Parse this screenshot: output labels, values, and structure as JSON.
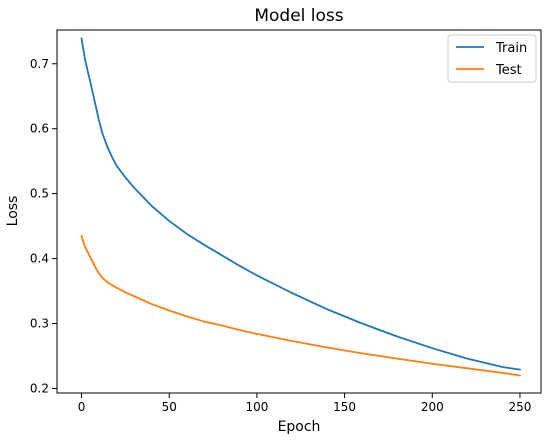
{
  "chart_data": {
    "type": "line",
    "title": "Model loss",
    "xlabel": "Epoch",
    "ylabel": "Loss",
    "xlim": [
      -14,
      262
    ],
    "ylim": [
      0.193,
      0.752
    ],
    "x_ticks": [
      0,
      50,
      100,
      150,
      200,
      250
    ],
    "y_ticks": [
      0.2,
      0.3,
      0.4,
      0.5,
      0.6,
      0.7
    ],
    "x_tick_labels": [
      "0",
      "50",
      "100",
      "150",
      "200",
      "250"
    ],
    "y_tick_labels": [
      "0.2",
      "0.3",
      "0.4",
      "0.5",
      "0.6",
      "0.7"
    ],
    "grid": false,
    "legend_position": "top-right",
    "series": [
      {
        "name": "Train",
        "color": "#1f77b4",
        "x": [
          0,
          2,
          5,
          8,
          10,
          12,
          15,
          18,
          20,
          25,
          30,
          40,
          50,
          60,
          70,
          80,
          90,
          100,
          120,
          140,
          160,
          180,
          200,
          220,
          240,
          250
        ],
        "y": [
          0.739,
          0.706,
          0.672,
          0.636,
          0.612,
          0.592,
          0.57,
          0.553,
          0.543,
          0.525,
          0.509,
          0.481,
          0.458,
          0.438,
          0.421,
          0.405,
          0.389,
          0.374,
          0.347,
          0.322,
          0.3,
          0.28,
          0.262,
          0.246,
          0.233,
          0.229
        ]
      },
      {
        "name": "Test",
        "color": "#ff7f0e",
        "x": [
          0,
          2,
          5,
          8,
          10,
          12,
          15,
          20,
          25,
          30,
          40,
          50,
          60,
          70,
          80,
          90,
          100,
          120,
          140,
          160,
          180,
          200,
          220,
          240,
          250
        ],
        "y": [
          0.435,
          0.418,
          0.402,
          0.386,
          0.377,
          0.37,
          0.363,
          0.355,
          0.348,
          0.342,
          0.33,
          0.32,
          0.311,
          0.303,
          0.297,
          0.29,
          0.284,
          0.273,
          0.263,
          0.254,
          0.246,
          0.238,
          0.231,
          0.224,
          0.22
        ]
      }
    ]
  }
}
